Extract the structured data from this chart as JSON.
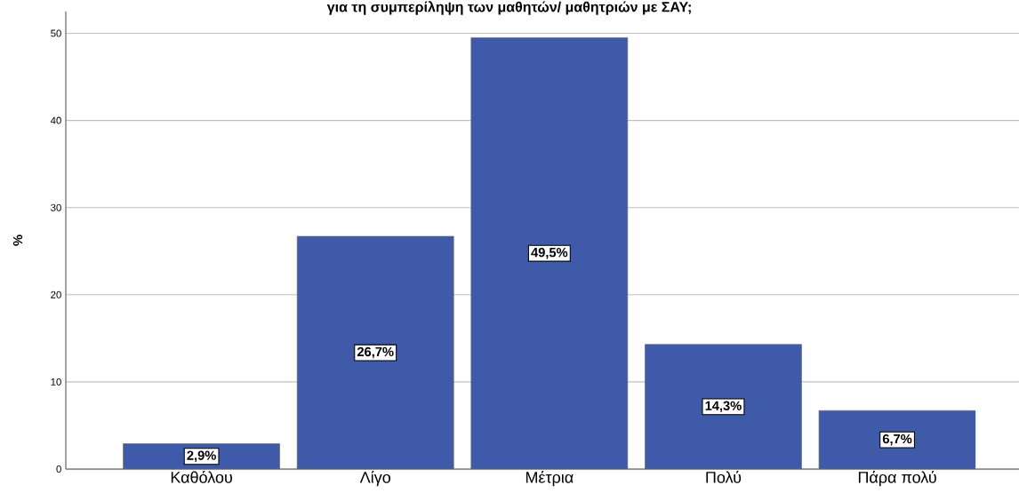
{
  "chart_data": {
    "type": "bar",
    "title": "για τη συμπερίληψη των μαθητών/ μαθητριών με ΣΑΥ;",
    "ylabel": "%",
    "categories": [
      "Καθόλου",
      "Λίγο",
      "Μέτρια",
      "Πολύ",
      "Πάρα πολύ"
    ],
    "values": [
      2.9,
      26.7,
      49.5,
      14.3,
      6.7
    ],
    "value_labels": [
      "2,9%",
      "26,7%",
      "49,5%",
      "14,3%",
      "6,7%"
    ],
    "color": "#3f5aa8",
    "ylim": [
      0,
      52.5
    ],
    "yticks": [
      0,
      10,
      20,
      30,
      40,
      50
    ],
    "grid": "y"
  }
}
